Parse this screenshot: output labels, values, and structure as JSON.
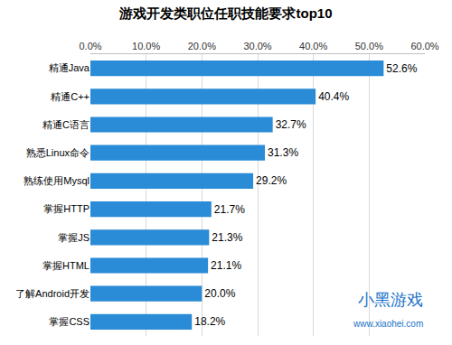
{
  "chart_data": {
    "type": "bar",
    "title": "游戏开发类职位任职技能要求top10",
    "orientation": "horizontal",
    "categories": [
      "精通Java",
      "精通C++",
      "精通C语言",
      "熟悉Linux命令",
      "熟练使用Mysql",
      "掌握HTTP",
      "掌握JS",
      "掌握HTML",
      "了解Android开发",
      "掌握CSS"
    ],
    "values": [
      52.6,
      40.4,
      32.7,
      31.3,
      29.2,
      21.7,
      21.3,
      21.1,
      20.0,
      18.2
    ],
    "value_labels": [
      "52.6%",
      "40.4%",
      "32.7%",
      "31.3%",
      "29.2%",
      "21.7%",
      "21.3%",
      "21.1%",
      "20.0%",
      "18.2%"
    ],
    "data_labels": true,
    "color": "#2a8bd6",
    "xlim": [
      0,
      60
    ],
    "xticks": [
      {
        "value": 0,
        "label": "0.0%"
      },
      {
        "value": 10,
        "label": "10.0%"
      },
      {
        "value": 20,
        "label": "20.0%"
      },
      {
        "value": 30,
        "label": "30.0%"
      },
      {
        "value": 40,
        "label": "40.0%"
      },
      {
        "value": 50,
        "label": "50.0%"
      },
      {
        "value": 60,
        "label": "60.0%"
      }
    ],
    "grid": true,
    "annotations": [
      "小黑游戏",
      "www.xiaohei.com"
    ]
  }
}
